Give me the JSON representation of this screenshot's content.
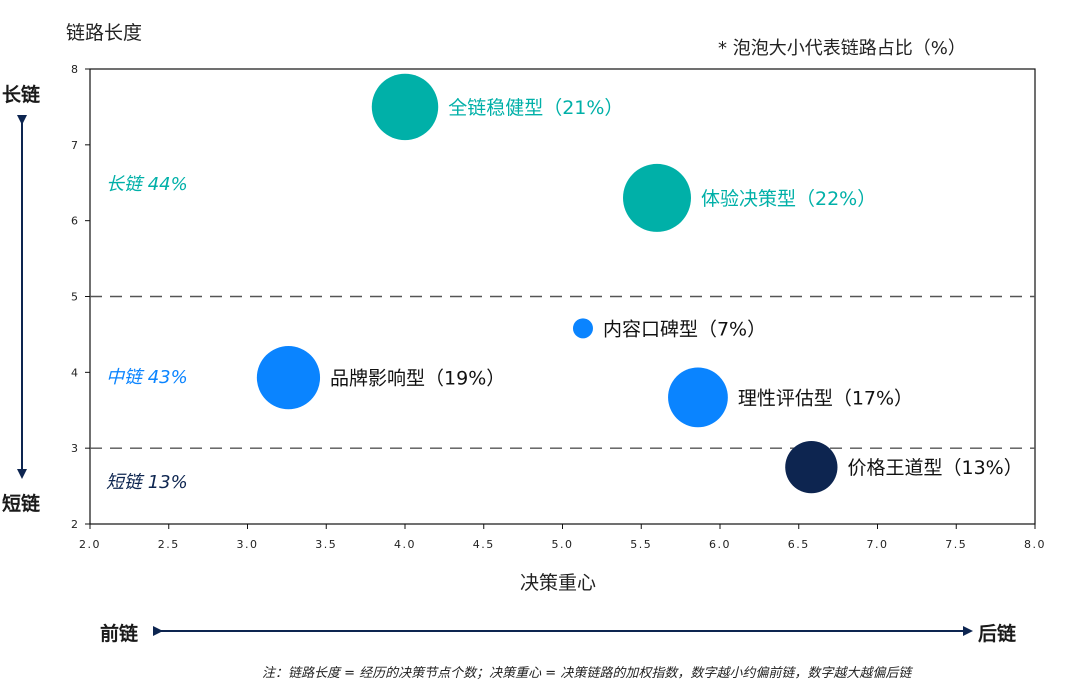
{
  "chart_data": {
    "type": "scatter",
    "title": "",
    "xlabel": "决策重心",
    "ylabel": "链路长度",
    "xlim": [
      2.0,
      8.0
    ],
    "ylim": [
      2,
      8
    ],
    "x_ticks": [
      "2.0",
      "2.5",
      "3.0",
      "3.5",
      "4.0",
      "4.5",
      "5.0",
      "5.5",
      "6.0",
      "6.5",
      "7.0",
      "7.5",
      "8.0"
    ],
    "y_ticks": [
      "2",
      "3",
      "4",
      "5",
      "6",
      "7",
      "8"
    ],
    "threshold_lines": [
      3,
      5
    ],
    "bubble_note": "* 泡泡大小代表链路占比（%）",
    "points": [
      {
        "name": "全链稳健型",
        "label": "全链稳健型（21%）",
        "x": 4.0,
        "y": 7.5,
        "share": 21,
        "color": "#00b0a8"
      },
      {
        "name": "体验决策型",
        "label": "体验决策型（22%）",
        "x": 5.6,
        "y": 6.3,
        "share": 22,
        "color": "#00b0a8"
      },
      {
        "name": "内容口碑型",
        "label": "内容口碑型（7%）",
        "x": 5.13,
        "y": 4.58,
        "share": 7,
        "color": "#0a84ff"
      },
      {
        "name": "品牌影响型",
        "label": "品牌影响型（19%）",
        "x": 3.26,
        "y": 3.93,
        "share": 19,
        "color": "#0a84ff"
      },
      {
        "name": "理性评估型",
        "label": "理性评估型（17%）",
        "x": 5.86,
        "y": 3.67,
        "share": 17,
        "color": "#0a84ff"
      },
      {
        "name": "价格王道型",
        "label": "价格王道型（13%）",
        "x": 6.58,
        "y": 2.75,
        "share": 13,
        "color": "#0d2550"
      }
    ],
    "zones": [
      {
        "label": "长链 44%",
        "y": 6.5,
        "color": "#00b0a8"
      },
      {
        "label": "中链 43%",
        "y": 3.95,
        "color": "#0a84ff"
      },
      {
        "label": "短链 13%",
        "y": 2.57,
        "color": "#0d2550"
      }
    ]
  },
  "labels": {
    "long_chain": "长链",
    "short_chain": "短链",
    "front_chain": "前链",
    "back_chain": "后链",
    "footnote": "注：链路长度 = 经历的决策节点个数；决策重心 = 决策链路的加权指数，数字越小约偏前链，数字越大越偏后链"
  }
}
